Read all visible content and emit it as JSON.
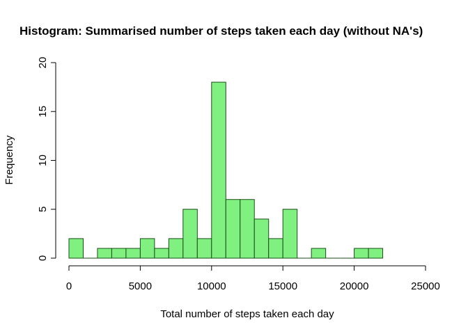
{
  "chart_data": {
    "type": "bar",
    "title": "Histogram: Summarised number of steps taken each day (without NA's)",
    "xlabel": "Total number of steps taken each day",
    "ylabel": "Frequency",
    "xlim": [
      0,
      25000
    ],
    "ylim": [
      0,
      20
    ],
    "bin_width": 1000,
    "x_ticks": [
      0,
      5000,
      10000,
      15000,
      20000,
      25000
    ],
    "y_ticks": [
      0,
      5,
      10,
      15,
      20
    ],
    "bar_color": "#80f080",
    "bins": [
      {
        "x0": 0,
        "x1": 1000,
        "count": 2
      },
      {
        "x0": 1000,
        "x1": 2000,
        "count": 0
      },
      {
        "x0": 2000,
        "x1": 3000,
        "count": 1
      },
      {
        "x0": 3000,
        "x1": 4000,
        "count": 1
      },
      {
        "x0": 4000,
        "x1": 5000,
        "count": 1
      },
      {
        "x0": 5000,
        "x1": 6000,
        "count": 2
      },
      {
        "x0": 6000,
        "x1": 7000,
        "count": 1
      },
      {
        "x0": 7000,
        "x1": 8000,
        "count": 2
      },
      {
        "x0": 8000,
        "x1": 9000,
        "count": 5
      },
      {
        "x0": 9000,
        "x1": 10000,
        "count": 2
      },
      {
        "x0": 10000,
        "x1": 11000,
        "count": 18
      },
      {
        "x0": 11000,
        "x1": 12000,
        "count": 6
      },
      {
        "x0": 12000,
        "x1": 13000,
        "count": 6
      },
      {
        "x0": 13000,
        "x1": 14000,
        "count": 4
      },
      {
        "x0": 14000,
        "x1": 15000,
        "count": 2
      },
      {
        "x0": 15000,
        "x1": 16000,
        "count": 5
      },
      {
        "x0": 16000,
        "x1": 17000,
        "count": 0
      },
      {
        "x0": 17000,
        "x1": 18000,
        "count": 1
      },
      {
        "x0": 18000,
        "x1": 19000,
        "count": 0
      },
      {
        "x0": 19000,
        "x1": 20000,
        "count": 0
      },
      {
        "x0": 20000,
        "x1": 21000,
        "count": 1
      },
      {
        "x0": 21000,
        "x1": 22000,
        "count": 1
      }
    ]
  }
}
